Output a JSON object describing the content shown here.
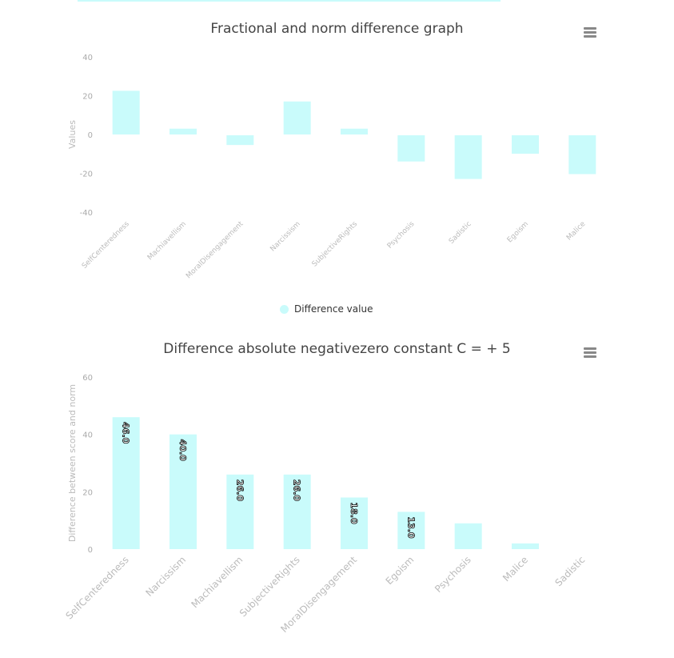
{
  "chart_data": [
    {
      "type": "bar",
      "title": "Fractional and norm difference graph",
      "ylabel": "Values",
      "xlabel": "",
      "ylim": [
        -40,
        40
      ],
      "yticks": [
        40,
        20,
        0,
        -20,
        -40
      ],
      "categories": [
        "SelfCenteredness",
        "Machiavellism",
        "MoralDisengagement",
        "Narcissism",
        "SubjectiveRights",
        "Psychosis",
        "Sadistic",
        "Egoism",
        "Malice"
      ],
      "series": [
        {
          "name": "Difference value",
          "values": [
            22.5,
            3,
            -5,
            17,
            3,
            -13.5,
            -22.5,
            -9.5,
            -20
          ]
        }
      ],
      "color": "#c9fbfb",
      "legend": "bottom-center"
    },
    {
      "type": "bar",
      "title": "Difference absolute negativezero constant C = + 5",
      "ylabel": "Difference between score and norm",
      "xlabel": "",
      "ylim": [
        0,
        60
      ],
      "yticks": [
        60,
        40,
        20,
        0
      ],
      "categories": [
        "SelfCenteredness",
        "Narcissism",
        "Machiavellism",
        "SubjectiveRights",
        "MoralDisengagement",
        "Egoism",
        "Psychosis",
        "Malice",
        "Sadistic"
      ],
      "values": [
        46,
        40,
        26,
        26,
        18,
        13,
        9,
        2,
        0
      ],
      "data_labels": [
        "46.0",
        "40.0",
        "26.0",
        "26.0",
        "18.0",
        "13.0",
        "",
        "",
        ""
      ],
      "color": "#c9fbfb"
    }
  ]
}
